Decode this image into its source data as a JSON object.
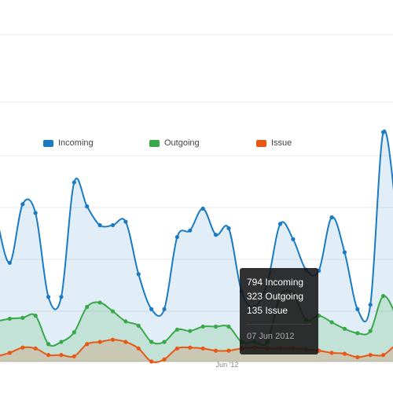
{
  "chart_data": {
    "type": "area",
    "colors": {
      "Incoming": "#1a7ac2",
      "Outgoing": "#38a848",
      "Issue": "#ea5614"
    },
    "series": [
      {
        "name": "Incoming",
        "color": "#1a7ac2",
        "values": [
          326,
          226,
          360,
          340,
          148,
          148,
          410,
          355,
          312,
          312,
          320,
          200,
          120,
          120,
          285,
          300,
          350,
          290,
          305,
          160,
          125,
          180,
          315,
          280,
          210,
          208,
          330,
          250,
          120,
          130,
          525,
          345
        ]
      },
      {
        "name": "Outgoing",
        "color": "#38a848",
        "values": [
          92,
          98,
          100,
          105,
          40,
          45,
          67,
          125,
          135,
          115,
          92,
          82,
          45,
          45,
          73,
          70,
          80,
          80,
          80,
          45,
          45,
          45,
          150,
          155,
          95,
          105,
          90,
          75,
          65,
          70,
          150,
          105
        ]
      },
      {
        "name": "Issue",
        "color": "#ea5614",
        "values": [
          12,
          20,
          32,
          30,
          15,
          15,
          12,
          40,
          45,
          50,
          45,
          30,
          0,
          5,
          30,
          32,
          30,
          25,
          25,
          30,
          32,
          30,
          30,
          30,
          28,
          25,
          20,
          18,
          10,
          15,
          15,
          40
        ]
      }
    ],
    "xlabel": "",
    "ylabel": "",
    "x_ticks": [
      "Jun '12"
    ],
    "ylim": [
      0,
      700
    ],
    "grid": true,
    "legend_position": "top-center"
  },
  "legend": {
    "items": [
      {
        "label": "Incoming",
        "color": "#1a7ac2"
      },
      {
        "label": "Outgoing",
        "color": "#38a848"
      },
      {
        "label": "Issue",
        "color": "#ea5614"
      }
    ]
  },
  "x_axis": {
    "tick_label": "Jun '12"
  },
  "tooltip": {
    "line1": "794 Incoming",
    "line2": "323 Outgoing",
    "line3": "135 Issue",
    "date": "07 Jun 2012"
  }
}
